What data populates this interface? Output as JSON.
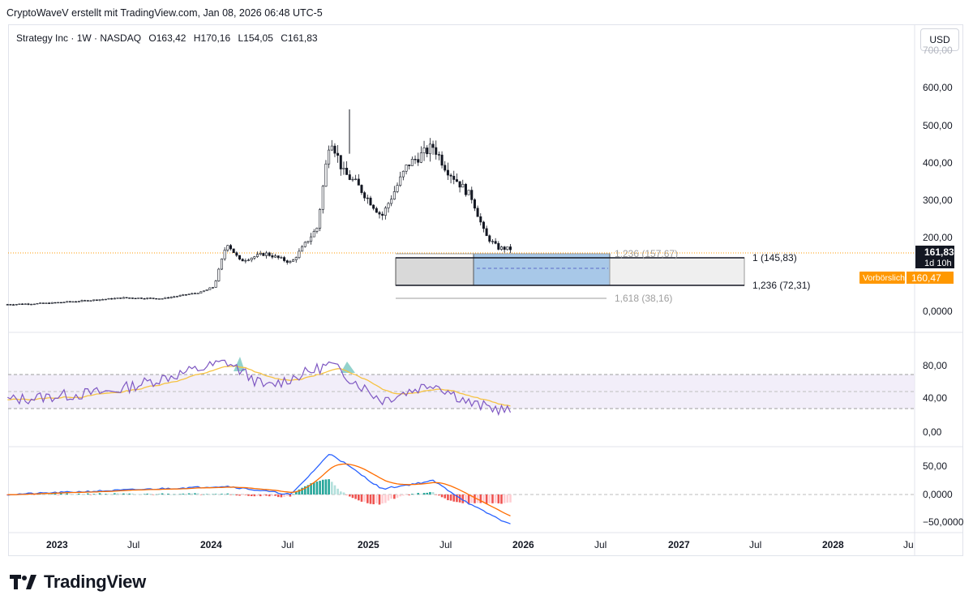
{
  "header": {
    "credit": "CryptoWaveV erstellt mit TradingView.com, Jan 08, 2026 06:48 UTC-5"
  },
  "toolbar": {
    "currency": "USD"
  },
  "legend": {
    "symbol": "Strategy Inc · 1W · NASDAQ",
    "open": "O163,42",
    "high": "H170,16",
    "low": "L154,05",
    "close": "C161,83"
  },
  "price_axis": {
    "ticks": [
      "700,00",
      "600,00",
      "500,00",
      "400,00",
      "300,00",
      "200,00",
      "0,0000"
    ],
    "last_price": "161,83",
    "countdown": "1d 10h",
    "premarket_label": "Vorbörslich",
    "premarket_price": "160,47"
  },
  "rsi_axis": {
    "ticks": [
      "80,00",
      "40,00",
      "0,00"
    ]
  },
  "macd_axis": {
    "ticks": [
      "50,00",
      "0,0000",
      "−50,0000"
    ]
  },
  "time_axis": {
    "labels": [
      "2023",
      "Jul",
      "2024",
      "Jul",
      "2025",
      "Jul",
      "2026",
      "Jul",
      "2027",
      "Jul",
      "2028",
      "Ju"
    ]
  },
  "fib_levels": [
    {
      "text": "1,236 (157,67)"
    },
    {
      "text": "1 (145,83)"
    },
    {
      "text": "1,236 (72,31)"
    },
    {
      "text": "1,618 (38,16)"
    }
  ],
  "colors": {
    "up": "#26a69a",
    "down": "#ef5350",
    "candle": "#131722",
    "rsi": "#7e57c2",
    "rsi_ma": "#f6c343",
    "macd": "#2962ff",
    "signal": "#ff6d00",
    "premarket": "#ff9800",
    "box": "#a8c8e8"
  },
  "chart_data": {
    "type": "candlestick",
    "symbol": "Strategy Inc",
    "interval": "1W",
    "ylim": [
      0,
      700
    ],
    "price_path": [
      [
        "2022-10",
        12
      ],
      [
        "2023-01",
        15
      ],
      [
        "2023-04",
        22
      ],
      [
        "2023-07",
        30
      ],
      [
        "2023-10",
        28
      ],
      [
        "2024-01",
        45
      ],
      [
        "2024-02",
        60
      ],
      [
        "2024-03",
        180
      ],
      [
        "2024-04",
        130
      ],
      [
        "2024-06",
        150
      ],
      [
        "2024-08",
        125
      ],
      [
        "2024-10",
        220
      ],
      [
        "2024-11",
        470
      ],
      [
        "2024-12",
        370
      ],
      [
        "2025-01",
        340
      ],
      [
        "2025-03",
        250
      ],
      [
        "2025-05",
        390
      ],
      [
        "2025-07",
        440
      ],
      [
        "2025-08",
        380
      ],
      [
        "2025-09",
        340
      ],
      [
        "2025-10",
        300
      ],
      [
        "2025-11",
        200
      ],
      [
        "2025-12",
        165
      ],
      [
        "2026-01",
        162
      ]
    ],
    "last_close": 161.83,
    "fib_levels": [
      157.67,
      145.83,
      72.31,
      38.16
    ],
    "rsi": {
      "ylim": [
        0,
        100
      ],
      "bands": [
        30,
        70
      ],
      "path": [
        [
          "2022-10",
          40
        ],
        [
          "2023-06",
          50
        ],
        [
          "2024-03",
          85
        ],
        [
          "2024-06",
          55
        ],
        [
          "2024-11",
          82
        ],
        [
          "2025-03",
          40
        ],
        [
          "2025-07",
          60
        ],
        [
          "2025-10",
          35
        ],
        [
          "2026-01",
          27
        ]
      ]
    },
    "macd": {
      "ylim": [
        -60,
        80
      ],
      "path": [
        [
          "2022-10",
          0
        ],
        [
          "2024-03",
          15
        ],
        [
          "2024-08",
          0
        ],
        [
          "2024-11",
          75
        ],
        [
          "2025-03",
          10
        ],
        [
          "2025-07",
          25
        ],
        [
          "2025-10",
          -20
        ],
        [
          "2026-01",
          -55
        ]
      ]
    }
  }
}
